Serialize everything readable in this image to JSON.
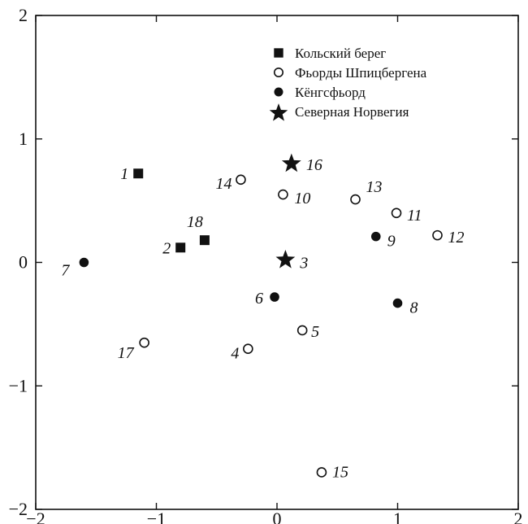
{
  "chart_data": {
    "type": "scatter",
    "xlim": [
      -2,
      2
    ],
    "ylim": [
      -2,
      2
    ],
    "x_ticks": [
      -2,
      -1,
      0,
      1,
      2
    ],
    "y_ticks": [
      -2,
      -1,
      0,
      1,
      2
    ],
    "grid": false,
    "legend_position": "top-right",
    "series": [
      {
        "name": "Кольский берег",
        "marker": "square",
        "points": [
          {
            "label": "1",
            "x": -1.15,
            "y": 0.72
          },
          {
            "label": "2",
            "x": -0.8,
            "y": 0.12
          },
          {
            "label": "18",
            "x": -0.6,
            "y": 0.18
          }
        ]
      },
      {
        "name": "Фьорды Шпицбергена",
        "marker": "circle-open",
        "points": [
          {
            "label": "14",
            "x": -0.3,
            "y": 0.67
          },
          {
            "label": "10",
            "x": 0.05,
            "y": 0.55
          },
          {
            "label": "13",
            "x": 0.65,
            "y": 0.51
          },
          {
            "label": "11",
            "x": 0.99,
            "y": 0.4
          },
          {
            "label": "12",
            "x": 1.33,
            "y": 0.22
          },
          {
            "label": "5",
            "x": 0.21,
            "y": -0.55
          },
          {
            "label": "4",
            "x": -0.24,
            "y": -0.7
          },
          {
            "label": "17",
            "x": -1.1,
            "y": -0.65
          },
          {
            "label": "15",
            "x": 0.37,
            "y": -1.7
          }
        ]
      },
      {
        "name": "Кёнгсфьорд",
        "marker": "circle-filled",
        "points": [
          {
            "label": "7",
            "x": -1.6,
            "y": 0.0
          },
          {
            "label": "6",
            "x": -0.02,
            "y": -0.28
          },
          {
            "label": "9",
            "x": 0.82,
            "y": 0.21
          },
          {
            "label": "8",
            "x": 1.0,
            "y": -0.33
          }
        ]
      },
      {
        "name": "Северная Норвегия",
        "marker": "star",
        "points": [
          {
            "label": "16",
            "x": 0.12,
            "y": 0.8
          },
          {
            "label": "3",
            "x": 0.07,
            "y": 0.02
          }
        ]
      }
    ]
  }
}
